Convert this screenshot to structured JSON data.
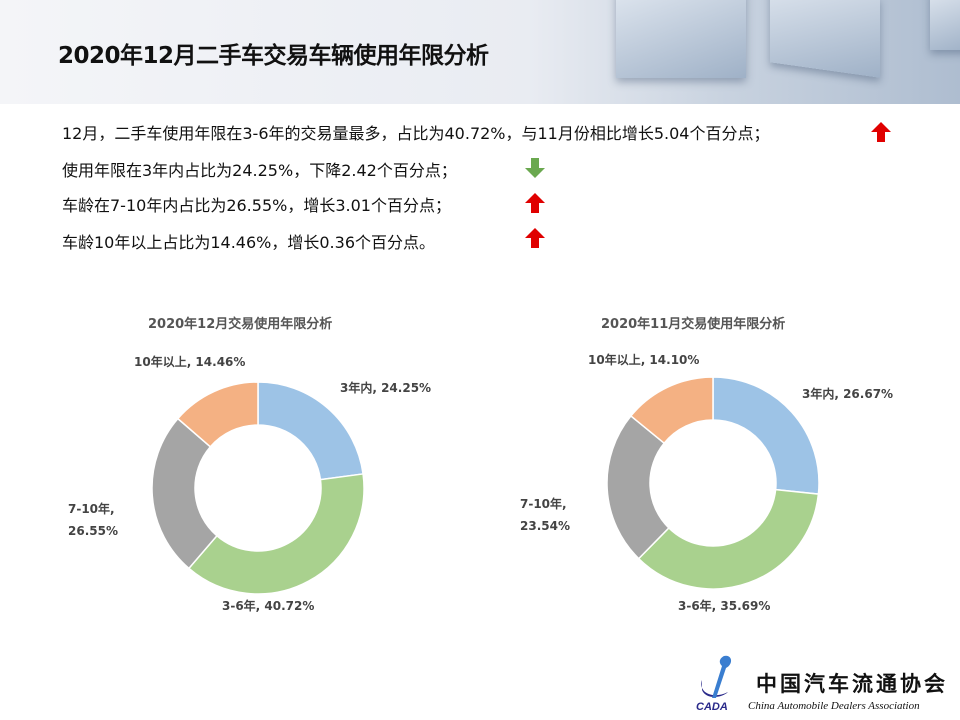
{
  "title": "2020年12月二手车交易车辆使用年限分析",
  "summary": [
    {
      "text": "12月，二手车使用年限在3-6年的交易量最多，占比为40.72%，与11月份相比增长5.04个百分点；",
      "trend": "up"
    },
    {
      "text": "使用年限在3年内占比为24.25%，下降2.42个百分点；",
      "trend": "down"
    },
    {
      "text": "车龄在7-10年内占比为26.55%，增长3.01个百分点；",
      "trend": "up"
    },
    {
      "text": "车龄10年以上占比为14.46%，增长0.36个百分点。",
      "trend": "up"
    }
  ],
  "colors": {
    "up": "#e00000",
    "down": "#6aa84f",
    "3年内": "#9dc3e6",
    "3-6年": "#a9d18e",
    "7-10年": "#a5a5a5",
    "10年以上": "#f4b183"
  },
  "chart_data": [
    {
      "type": "pie",
      "variant": "donut",
      "title": "2020年12月交易使用年限分析",
      "categories": [
        "3年内",
        "3-6年",
        "7-10年",
        "10年以上"
      ],
      "values": [
        24.25,
        40.72,
        26.55,
        14.46
      ],
      "labels": [
        "3年内, 24.25%",
        "3-6年, 40.72%",
        "7-10年, 26.55%",
        "10年以上, 14.46%"
      ]
    },
    {
      "type": "pie",
      "variant": "donut",
      "title": "2020年11月交易使用年限分析",
      "categories": [
        "3年内",
        "3-6年",
        "7-10年",
        "10年以上"
      ],
      "values": [
        26.67,
        35.69,
        23.54,
        14.1
      ],
      "labels": [
        "3年内, 26.67%",
        "3-6年, 35.69%",
        "7-10年, 23.54%",
        "10年以上, 14.10%"
      ]
    }
  ],
  "logo": {
    "cn": "中国汽车流通协会",
    "en": "China Automobile Dealers Association",
    "abbr": "CADA"
  }
}
